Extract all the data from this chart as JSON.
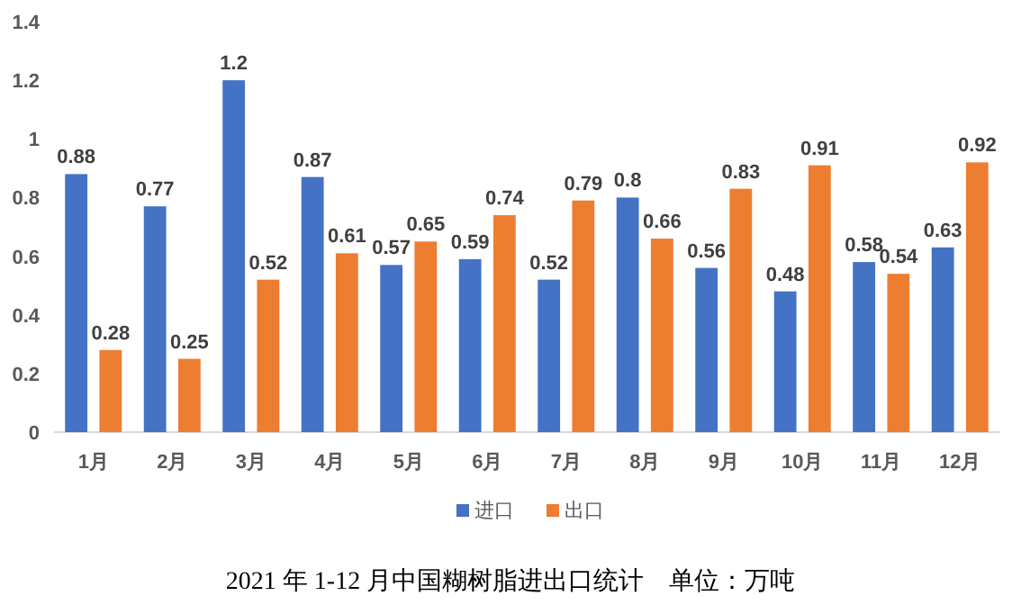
{
  "chart_data": {
    "type": "bar",
    "title": "2021 年 1-12 月中国糊树脂进出口统计    单位：万吨",
    "categories": [
      "1月",
      "2月",
      "3月",
      "4月",
      "5月",
      "6月",
      "7月",
      "8月",
      "9月",
      "10月",
      "11月",
      "12月"
    ],
    "series": [
      {
        "name": "进口",
        "color": "#4472c4",
        "values": [
          0.88,
          0.77,
          1.2,
          0.87,
          0.57,
          0.59,
          0.52,
          0.8,
          0.56,
          0.48,
          0.58,
          0.63
        ]
      },
      {
        "name": "出口",
        "color": "#ed7d31",
        "values": [
          0.28,
          0.25,
          0.52,
          0.61,
          0.65,
          0.74,
          0.79,
          0.66,
          0.83,
          0.91,
          0.54,
          0.92
        ]
      }
    ],
    "ylim": [
      0,
      1.4
    ],
    "yticks": [
      0,
      0.2,
      0.4,
      0.6,
      0.8,
      1,
      1.2,
      1.4
    ],
    "data_labels": true,
    "legend": "bottom",
    "grid": false
  }
}
